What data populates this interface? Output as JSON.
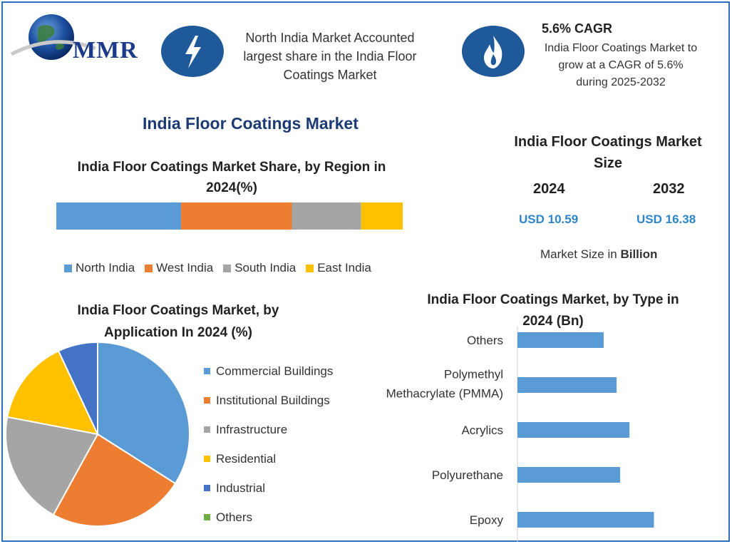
{
  "brand": {
    "logo_text": "MMR",
    "logo_color": "#1c3a8a"
  },
  "highlight_1": {
    "text_line1": "North India Market Accounted",
    "text_line2": "largest share in the India Floor",
    "text_line3": "Coatings Market",
    "icon": "lightning-icon"
  },
  "highlight_2": {
    "title": "5.6% CAGR",
    "text_line1": "India Floor Coatings Market to",
    "text_line2": "grow at a CAGR of 5.6%",
    "text_line3": "during 2025-2032",
    "icon": "flame-icon"
  },
  "main_title": "India Floor Coatings Market",
  "market_size": {
    "title_line1": "India Floor Coatings Market",
    "title_line2": "Size",
    "year_a": "2024",
    "value_a": "USD 10.59",
    "year_b": "2032",
    "value_b": "USD 16.38",
    "unit_prefix": "Market Size in ",
    "unit_bold": "Billion"
  },
  "colors": {
    "accent_blue": "#5b9bd5",
    "orange": "#ed7d31",
    "gray": "#a5a5a5",
    "yellow": "#ffc000",
    "dark_blue": "#4472c4",
    "green": "#70ad47",
    "frame": "#2c6fbd"
  },
  "chart_data": [
    {
      "type": "bar",
      "orientation": "horizontal-stacked",
      "title": "India Floor Coatings Market Share, by Region in 2024(%)",
      "title_line1": "India Floor Coatings Market Share, by Region in",
      "title_line2": "2024(%)",
      "series": [
        {
          "name": "North India",
          "values": [
            36
          ],
          "color": "#5b9bd5"
        },
        {
          "name": "West India",
          "values": [
            32
          ],
          "color": "#ed7d31"
        },
        {
          "name": "South India",
          "values": [
            20
          ],
          "color": "#a5a5a5"
        },
        {
          "name": "East India",
          "values": [
            12
          ],
          "color": "#ffc000"
        }
      ],
      "legend": "bottom"
    },
    {
      "type": "pie",
      "title": "India Floor Coatings Market, by Application In 2024 (%)",
      "title_line1": "India Floor Coatings Market, by",
      "title_line2": "Application In 2024 (%)",
      "categories": [
        "Commercial Buildings",
        "Institutional Buildings",
        "Infrastructure",
        "Residential",
        "Industrial",
        "Others"
      ],
      "values": [
        34,
        24,
        20,
        15,
        7,
        0
      ],
      "colors": [
        "#5b9bd5",
        "#ed7d31",
        "#a5a5a5",
        "#ffc000",
        "#4472c4",
        "#70ad47"
      ],
      "legend": "right"
    },
    {
      "type": "bar",
      "orientation": "horizontal",
      "title": "India Floor Coatings Market, by Type in 2024 (Bn)",
      "title_line1": "India Floor Coatings Market, by Type in",
      "title_line2": "2024 (Bn)",
      "categories": [
        "Others",
        "Polymethyl Methacrylate (PMMA)",
        "Acrylics",
        "Polyurethane",
        "Epoxy"
      ],
      "category_lines": [
        [
          "Others"
        ],
        [
          "Polymethyl",
          "Methacrylate (PMMA)"
        ],
        [
          "Acrylics"
        ],
        [
          "Polyurethane"
        ],
        [
          "Epoxy"
        ]
      ],
      "values": [
        1.2,
        1.38,
        1.56,
        1.43,
        1.9
      ],
      "xlim": [
        0,
        2.6
      ],
      "color": "#5b9bd5"
    }
  ]
}
